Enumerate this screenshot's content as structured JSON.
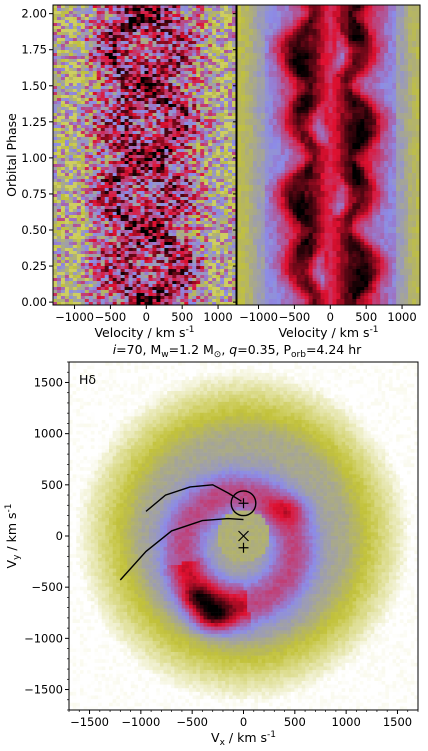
{
  "chart_data": [
    {
      "type": "heatmap",
      "panel": "observed trailed spectra",
      "xlabel_parts": [
        "Velocity / km s",
        "-1"
      ],
      "ylabel": "Orbital Phase",
      "xlim": [
        -1300,
        1250
      ],
      "ylim": [
        -0.02,
        2.06
      ],
      "xticks": [
        -1000,
        -500,
        0,
        500,
        1000
      ],
      "yticks": [
        0.0,
        0.25,
        0.5,
        0.75,
        1.0,
        1.25,
        1.5,
        1.75,
        2.0
      ],
      "ytick_labels": [
        "0.00",
        "0.25",
        "0.50",
        "0.75",
        "1.00",
        "1.25",
        "1.50",
        "1.75",
        "2.00"
      ],
      "colormap": [
        "#ffffff",
        "#c2c23a",
        "#8c8ce8",
        "#e01030",
        "#000000"
      ]
    },
    {
      "type": "heatmap",
      "panel": "model trailed spectra",
      "xlabel_parts": [
        "Velocity / km s",
        "-1"
      ],
      "xlim": [
        -1300,
        1250
      ],
      "ylim": [
        -0.02,
        2.06
      ],
      "xticks": [
        -1000,
        -500,
        0,
        500,
        1000
      ],
      "colormap": [
        "#ffffff",
        "#c2c23a",
        "#8c8ce8",
        "#e01030",
        "#000000"
      ]
    },
    {
      "type": "heatmap",
      "panel": "Doppler tomogram",
      "title_parts": [
        "i",
        "=70, M",
        "w",
        "=1.2 M",
        "⊙",
        ", ",
        "q",
        "=0.35, P",
        "orb",
        "=4.24 hr"
      ],
      "line_label": "Hδ",
      "xlabel_parts": [
        "V",
        "x",
        " / km s",
        "-1"
      ],
      "ylabel_parts": [
        "V",
        "y",
        " / km s",
        "-1"
      ],
      "xlim": [
        -1700,
        1700
      ],
      "ylim": [
        -1700,
        1700
      ],
      "xticks": [
        -1500,
        -1000,
        -500,
        0,
        500,
        1000,
        1500
      ],
      "yticks": [
        -1500,
        -1000,
        -500,
        0,
        500,
        1000,
        1500
      ],
      "markers": [
        {
          "symbol": "plus",
          "vx": 0,
          "vy": 320
        },
        {
          "symbol": "cross",
          "vx": 0,
          "vy": 0
        },
        {
          "symbol": "plus",
          "vx": 0,
          "vy": -115
        }
      ],
      "roche_lobe": {
        "center": [
          0,
          320
        ],
        "radius": 120
      },
      "stream_curves": [
        [
          [
            -20,
            340
          ],
          [
            -150,
            420
          ],
          [
            -300,
            500
          ],
          [
            -520,
            480
          ],
          [
            -760,
            400
          ],
          [
            -950,
            240
          ]
        ],
        [
          [
            0,
            160
          ],
          [
            -150,
            170
          ],
          [
            -400,
            150
          ],
          [
            -700,
            50
          ],
          [
            -950,
            -150
          ],
          [
            -1200,
            -430
          ]
        ]
      ],
      "emission": {
        "disc_center": [
          -50,
          -130
        ],
        "disc_radius": 540,
        "disc_width": 175,
        "inner_center": [
          0,
          0
        ],
        "inner_radius": 210,
        "outer_radius": 1000,
        "spots": [
          {
            "vx": -330,
            "vy": -830,
            "rx": 150,
            "ry": 110,
            "level": 3.6
          },
          {
            "vx": -480,
            "vy": -620,
            "rx": 120,
            "ry": 80,
            "level": 2.7
          },
          {
            "vx": 450,
            "vy": 260,
            "rx": 150,
            "ry": 95,
            "level": 2.5
          }
        ]
      }
    }
  ]
}
